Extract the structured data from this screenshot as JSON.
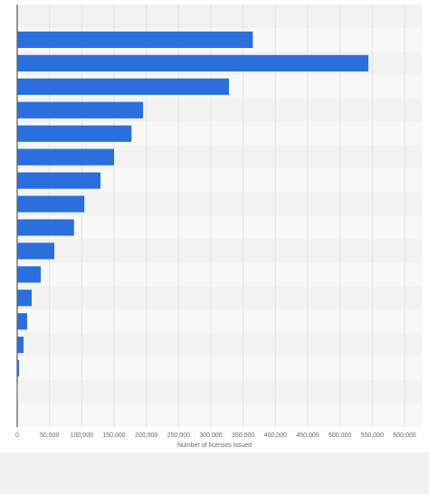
{
  "chart_data": {
    "type": "bar",
    "orientation": "horizontal",
    "x_label": "Number of licenses issued",
    "categories": [
      null,
      null,
      null,
      null,
      null,
      null,
      null,
      null,
      null,
      null,
      null,
      null,
      null,
      null,
      null,
      null,
      null,
      null
    ],
    "values": [
      null,
      365000,
      544000,
      328000,
      195000,
      177000,
      150000,
      129000,
      104000,
      88000,
      57500,
      36500,
      22400,
      15400,
      9800,
      2800,
      700,
      null
    ],
    "color": "#2a6fdb",
    "xlim": [
      0,
      600000
    ],
    "xticks": [
      0,
      {
        "value": 50000,
        "label": "50,000"
      },
      {
        "value": 100000,
        "label": "100,000"
      },
      {
        "value": 150000,
        "label": "150,000"
      },
      {
        "value": 200000,
        "label": "200,000"
      },
      {
        "value": 250000,
        "label": "250,000"
      },
      {
        "value": 300000,
        "label": "300,000"
      },
      {
        "value": 350000,
        "label": "350,000"
      },
      {
        "value": 400000,
        "label": "400,000"
      },
      {
        "value": 450000,
        "label": "450,000"
      },
      {
        "value": 500000,
        "label": "500,000"
      },
      {
        "value": 550000,
        "label": "550,000"
      },
      {
        "value": 600000,
        "label": "600,000"
      }
    ],
    "grid": true
  }
}
